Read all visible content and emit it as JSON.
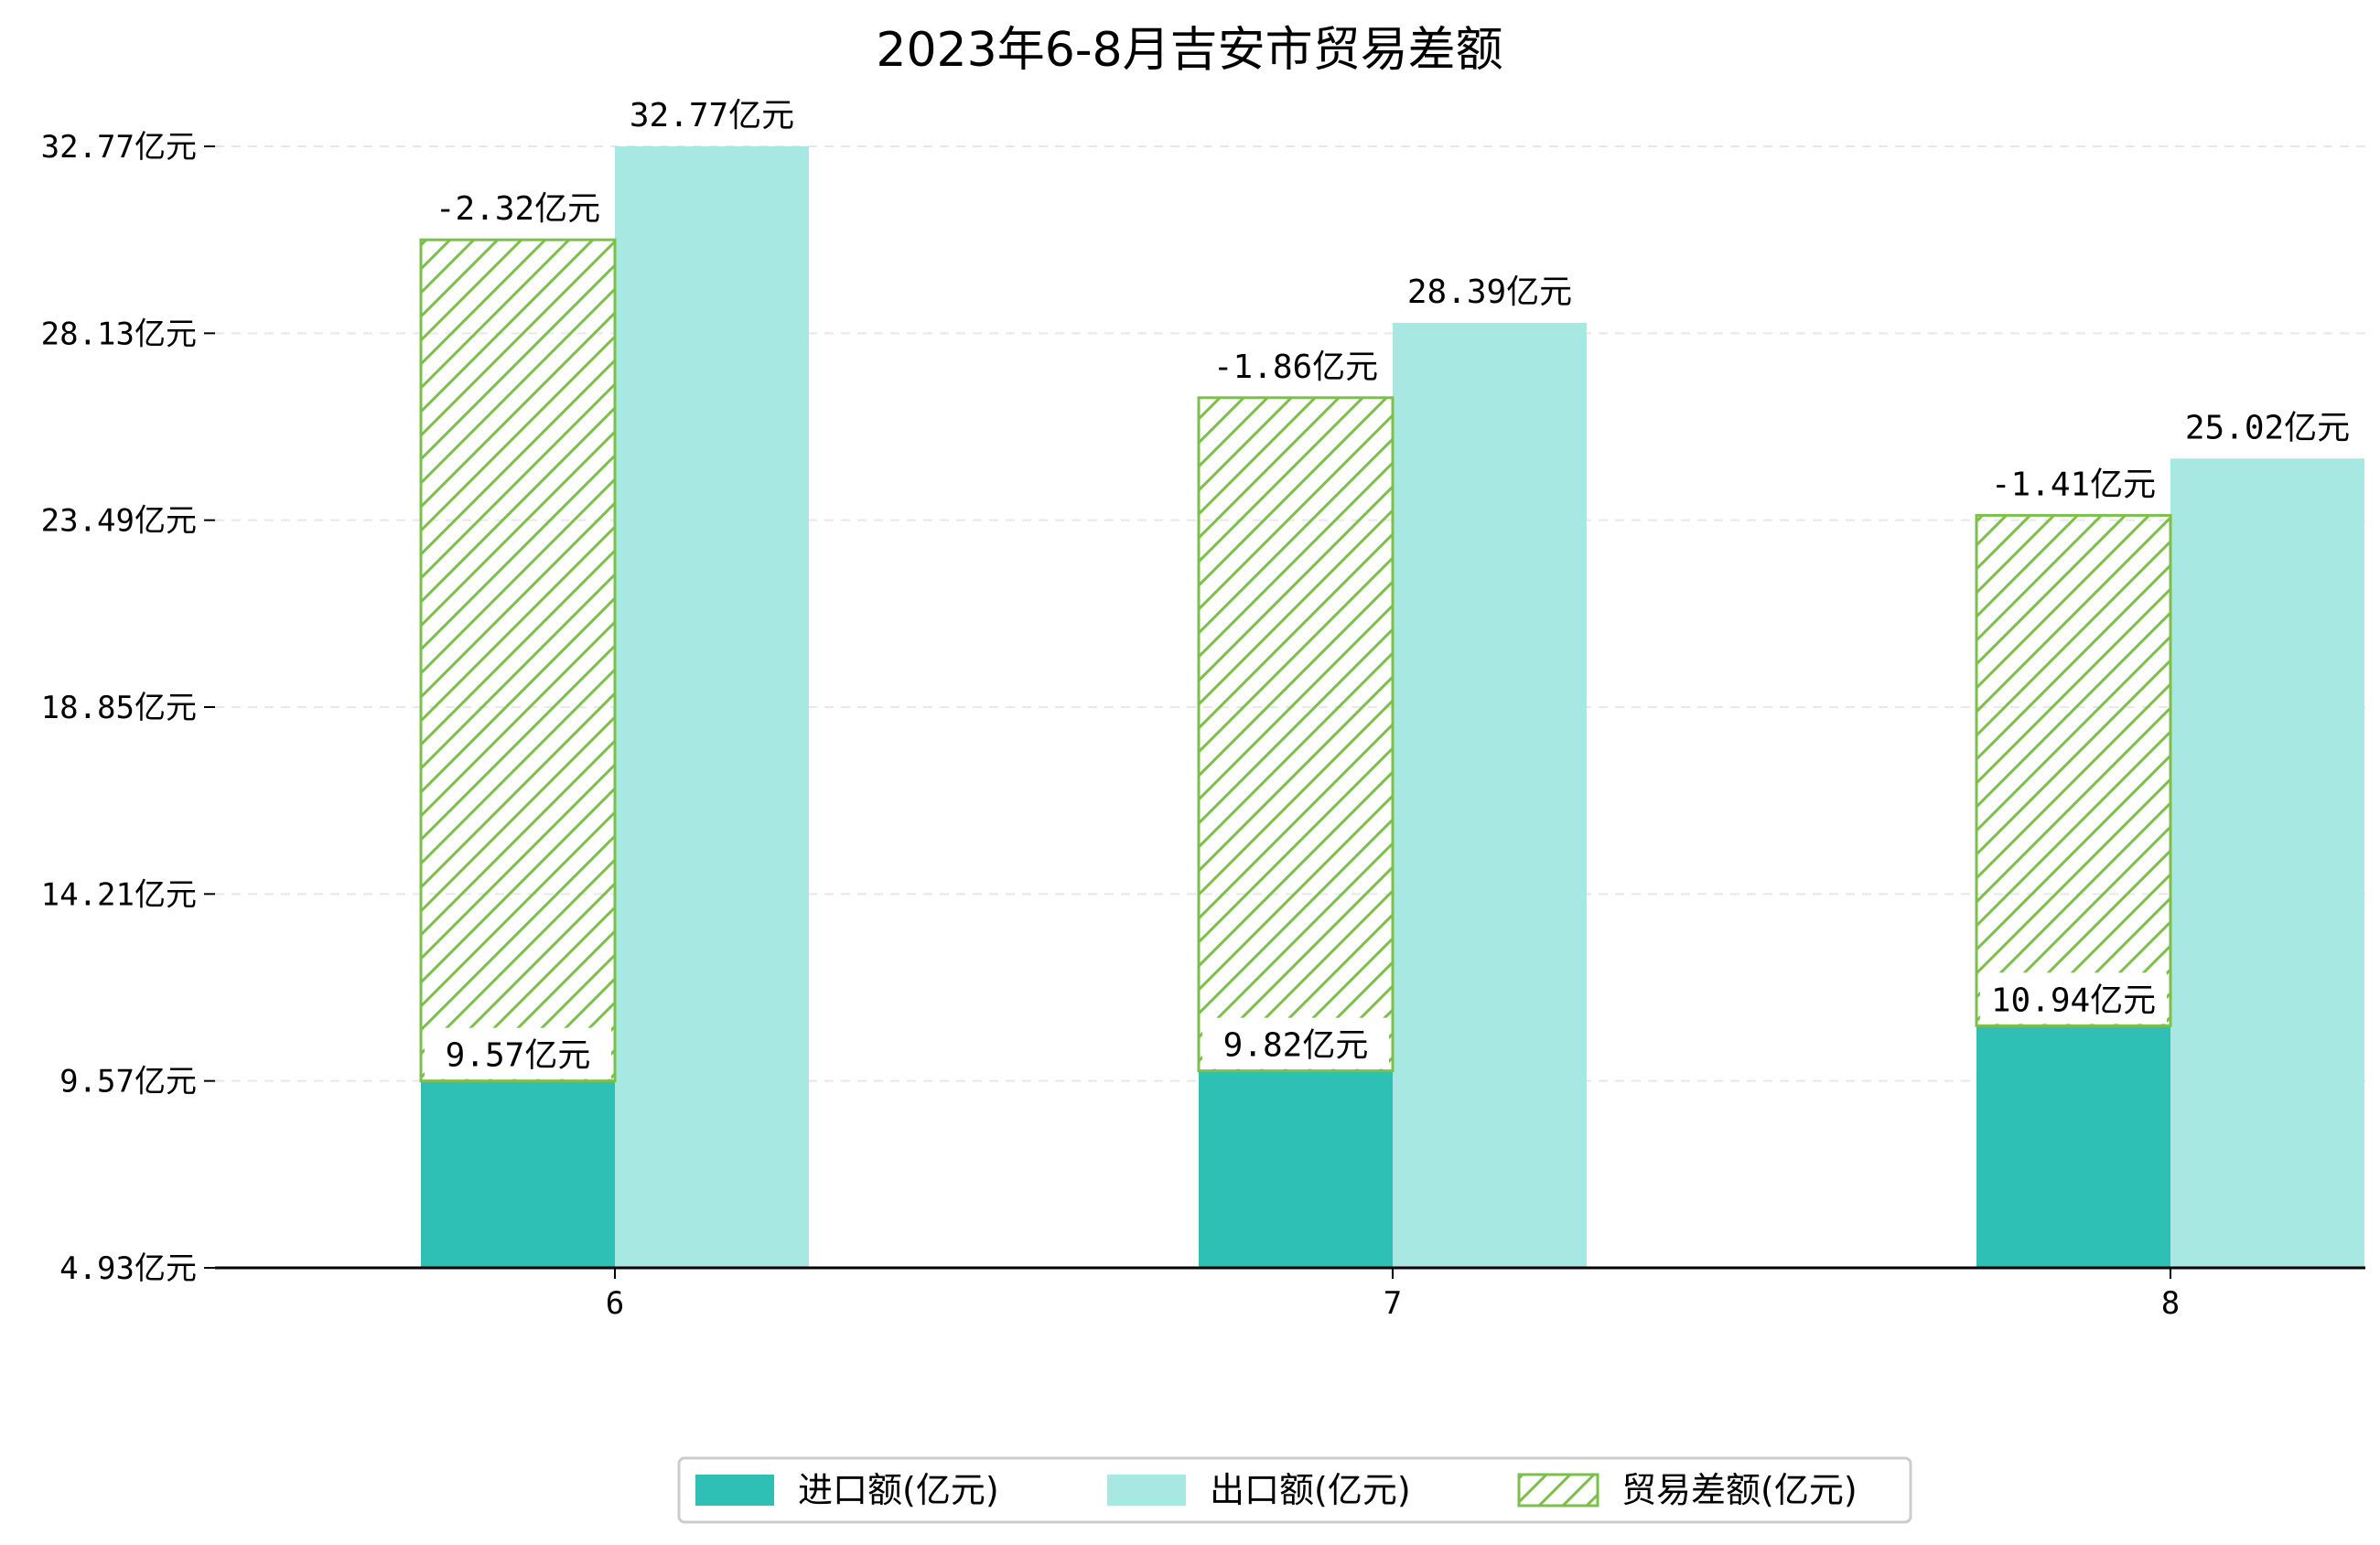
{
  "chart_data": {
    "type": "bar",
    "title": "2023年6-8月吉安市贸易差额",
    "xlabel": "",
    "ylabel": "",
    "categories": [
      "6",
      "7",
      "8"
    ],
    "series": [
      {
        "name": "进口额(亿元)",
        "values": [
          9.57,
          9.82,
          10.94
        ],
        "labels": [
          "9.57亿元",
          "9.82亿元",
          "10.94亿元"
        ],
        "color": "#2ec0b4"
      },
      {
        "name": "出口额(亿元)",
        "values": [
          32.77,
          28.39,
          25.02
        ],
        "labels": [
          "32.77亿元",
          "28.39亿元",
          "25.02亿元"
        ],
        "color": "#a8e8e2"
      },
      {
        "name": "贸易差额(亿元)",
        "values": [
          -2.32,
          -1.86,
          -1.41
        ],
        "labels": [
          "-2.32亿元",
          "-1.86亿元",
          "-1.41亿元"
        ],
        "color": "#7cbf4a",
        "pattern": "hatch"
      }
    ],
    "ylim": [
      4.93,
      34.0
    ],
    "yticks": [
      4.93,
      9.57,
      14.21,
      18.85,
      23.49,
      28.13,
      32.77
    ],
    "ytick_labels": [
      "4.93亿元",
      "9.57亿元",
      "14.21亿元",
      "18.85亿元",
      "23.49亿元",
      "28.13亿元",
      "32.77亿元"
    ],
    "grid": true,
    "legend_position": "bottom-center"
  }
}
